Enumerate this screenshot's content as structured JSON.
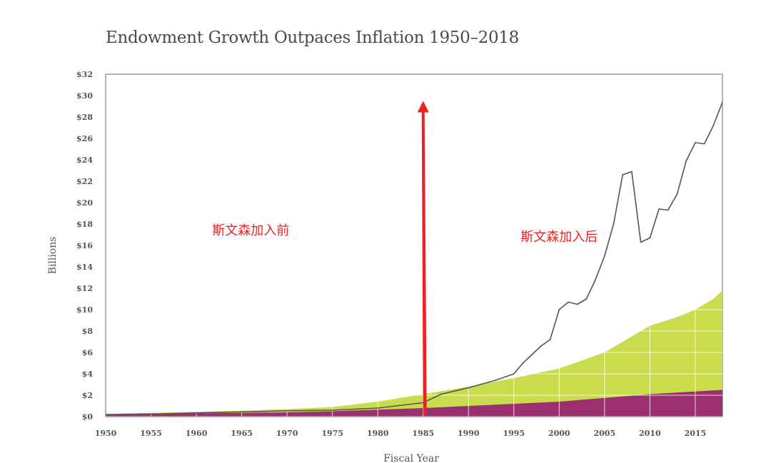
{
  "chart_data": {
    "type": "area",
    "title": "Endowment Growth Outpaces Inflation 1950–2018",
    "xlabel": "Fiscal Year",
    "ylabel": "Billions",
    "xlim": [
      1950,
      2018
    ],
    "ylim": [
      0,
      32
    ],
    "x_ticks": [
      1950,
      1955,
      1960,
      1965,
      1970,
      1975,
      1980,
      1985,
      1990,
      1995,
      2000,
      2005,
      2010,
      2015
    ],
    "x_tick_labels": [
      "1950",
      "1955",
      "1960",
      "1965",
      "1970",
      "1975",
      "1980",
      "1985",
      "1990",
      "1995",
      "2000",
      "2005",
      "2010",
      "2015"
    ],
    "y_ticks": [
      0,
      2,
      4,
      6,
      8,
      10,
      12,
      14,
      16,
      18,
      20,
      22,
      24,
      26,
      28,
      30,
      32
    ],
    "y_tick_labels": [
      "$0",
      "$2",
      "$4",
      "$6",
      "$8",
      "$10",
      "$12",
      "$14",
      "$16",
      "$18",
      "$20",
      "$22",
      "$24",
      "$26",
      "$28",
      "$30",
      "$32"
    ],
    "grid": "vertical and horizontal (white, within green area)",
    "legend": "none",
    "colors": {
      "green_area": "#c9dc4c",
      "purple_area": "#9b2f6f",
      "endowment_line": "#555555",
      "arrow": "#ee2222",
      "annotation_text": "#ee2222",
      "frame": "#9a9a9a"
    },
    "series": [
      {
        "type": "area",
        "color": "#c9dc4c",
        "x": [
          1950,
          1955,
          1960,
          1965,
          1970,
          1975,
          1980,
          1985,
          1990,
          1995,
          2000,
          2005,
          2008,
          2010,
          2013,
          2015,
          2017,
          2018
        ],
        "values": [
          0.25,
          0.35,
          0.45,
          0.55,
          0.7,
          0.9,
          1.4,
          2.1,
          2.8,
          3.6,
          4.5,
          6.0,
          7.5,
          8.5,
          9.3,
          10.0,
          11.0,
          11.8
        ]
      },
      {
        "type": "area",
        "color": "#9b2f6f",
        "x": [
          1950,
          1955,
          1960,
          1965,
          1970,
          1975,
          1980,
          1985,
          1990,
          1995,
          2000,
          2005,
          2010,
          2015,
          2018
        ],
        "values": [
          0.15,
          0.2,
          0.3,
          0.35,
          0.4,
          0.5,
          0.65,
          0.8,
          1.0,
          1.2,
          1.4,
          1.75,
          2.1,
          2.35,
          2.5
        ]
      },
      {
        "type": "line",
        "color": "#555555",
        "x": [
          1950,
          1955,
          1960,
          1965,
          1970,
          1975,
          1980,
          1983,
          1985,
          1987,
          1990,
          1993,
          1995,
          1996,
          1997,
          1998,
          1999,
          2000,
          2001,
          2002,
          2003,
          2004,
          2005,
          2006,
          2007,
          2008,
          2009,
          2010,
          2011,
          2012,
          2013,
          2014,
          2015,
          2016,
          2017,
          2018
        ],
        "values": [
          0.2,
          0.25,
          0.35,
          0.45,
          0.55,
          0.6,
          0.8,
          1.1,
          1.3,
          2.1,
          2.7,
          3.4,
          4.0,
          5.0,
          5.8,
          6.6,
          7.2,
          10.0,
          10.7,
          10.5,
          11.0,
          12.8,
          15.0,
          18.0,
          22.6,
          22.9,
          16.3,
          16.7,
          19.4,
          19.3,
          20.8,
          23.9,
          25.6,
          25.5,
          27.2,
          29.4
        ]
      }
    ],
    "annotations": [
      {
        "text": "斯文森加入前",
        "x": 1966,
        "y": 17.0
      },
      {
        "text": "斯文森加入后",
        "x": 2000,
        "y": 16.4
      }
    ],
    "arrow": {
      "x_start": 1985.2,
      "y_start": 0.2,
      "x_end": 1985.0,
      "y_end": 29.5
    }
  }
}
